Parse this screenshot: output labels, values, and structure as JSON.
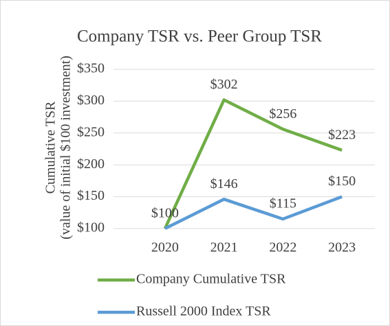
{
  "chart_data": {
    "type": "line",
    "title": "Company TSR vs. Peer Group TSR",
    "y_label": [
      "Cumulative TSR",
      "(value of initial $100 investment)"
    ],
    "categories": [
      "2020",
      "2021",
      "2022",
      "2023"
    ],
    "series": [
      {
        "name": "Company Cumulative TSR",
        "color": "#70ad47",
        "values": [
          100,
          302,
          256,
          223
        ],
        "value_labels": [
          "$100",
          "$302",
          "$256",
          "$223"
        ]
      },
      {
        "name": "Russell 2000 Index TSR",
        "color": "#5b9bd5",
        "values": [
          100,
          146,
          115,
          150
        ],
        "value_labels": [
          null,
          "$146",
          "$115",
          "$150"
        ]
      }
    ],
    "ylim": [
      100,
      350
    ],
    "yticks": [
      {
        "value": 100,
        "label": "$100"
      },
      {
        "value": 150,
        "label": "$150"
      },
      {
        "value": 200,
        "label": "$200"
      },
      {
        "value": 250,
        "label": "$250"
      },
      {
        "value": 300,
        "label": "$300"
      },
      {
        "value": 350,
        "label": "$350"
      }
    ],
    "grid": true,
    "legend": "bottom"
  }
}
